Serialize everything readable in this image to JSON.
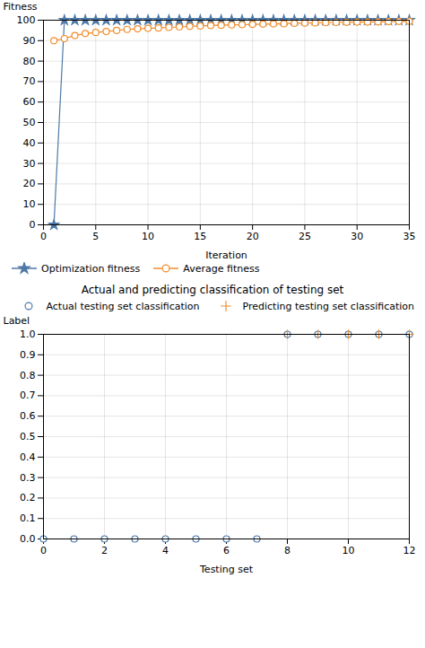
{
  "chart_data": [
    {
      "type": "line",
      "xlabel": "Iteration",
      "ylabel": "Fitness",
      "xlim": [
        0,
        35
      ],
      "ylim": [
        0,
        100
      ],
      "xticks": [
        0,
        5,
        10,
        15,
        20,
        25,
        30,
        35
      ],
      "yticks": [
        0,
        10,
        20,
        30,
        40,
        50,
        60,
        70,
        80,
        90,
        100
      ],
      "grid": true,
      "legend": "lower left",
      "x": [
        1,
        2,
        3,
        4,
        5,
        6,
        7,
        8,
        9,
        10,
        11,
        12,
        13,
        14,
        15,
        16,
        17,
        18,
        19,
        20,
        21,
        22,
        23,
        24,
        25,
        26,
        27,
        28,
        29,
        30,
        31,
        32,
        33,
        34,
        35
      ],
      "series": [
        {
          "name": "Optimization fitness",
          "marker": "star",
          "values": [
            0,
            100,
            100,
            100,
            100,
            100,
            100,
            100,
            100,
            100,
            100,
            100,
            100,
            100,
            100,
            100,
            100,
            100,
            100,
            100,
            100,
            100,
            100,
            100,
            100,
            100,
            100,
            100,
            100,
            100,
            100,
            100,
            100,
            100,
            100
          ]
        },
        {
          "name": "Average fitness",
          "marker": "circle",
          "values": [
            90,
            91,
            92.5,
            93.5,
            94.0,
            94.5,
            95.0,
            95.5,
            95.8,
            96.0,
            96.2,
            96.5,
            96.7,
            97.0,
            97.2,
            97.4,
            97.5,
            97.7,
            97.8,
            98.0,
            98.1,
            98.2,
            98.3,
            98.5,
            98.6,
            98.7,
            98.8,
            98.9,
            99.0,
            99.1,
            99.1,
            99.2,
            99.3,
            99.4,
            99.5
          ]
        }
      ]
    },
    {
      "type": "scatter",
      "title": "Actual and predicting classification of testing set",
      "xlabel": "Testing set",
      "ylabel": "Label",
      "xlim": [
        0,
        12
      ],
      "ylim": [
        0,
        1
      ],
      "xticks": [
        0,
        2,
        4,
        6,
        8,
        10,
        12
      ],
      "yticks": [
        {
          "value": 0,
          "label": "0.0"
        },
        0.1,
        0.2,
        0.3,
        0.4,
        0.5,
        0.6,
        0.7,
        0.8,
        0.9,
        {
          "value": 1.0,
          "label": "1.0"
        }
      ],
      "grid": true,
      "legend": "upper right",
      "series": [
        {
          "name": "Actual testing set classification",
          "marker": "circle",
          "x": [
            0,
            1,
            2,
            3,
            4,
            5,
            6,
            7,
            8,
            9,
            10,
            11,
            12
          ],
          "values": [
            0,
            0,
            0,
            0,
            0,
            0,
            0,
            0,
            1,
            1,
            1,
            1,
            1
          ]
        },
        {
          "name": "Predicting testing set classification",
          "marker": "plus",
          "x": [
            8,
            9,
            10,
            11,
            12
          ],
          "values": [
            1,
            1,
            1,
            1,
            1
          ]
        }
      ]
    }
  ]
}
